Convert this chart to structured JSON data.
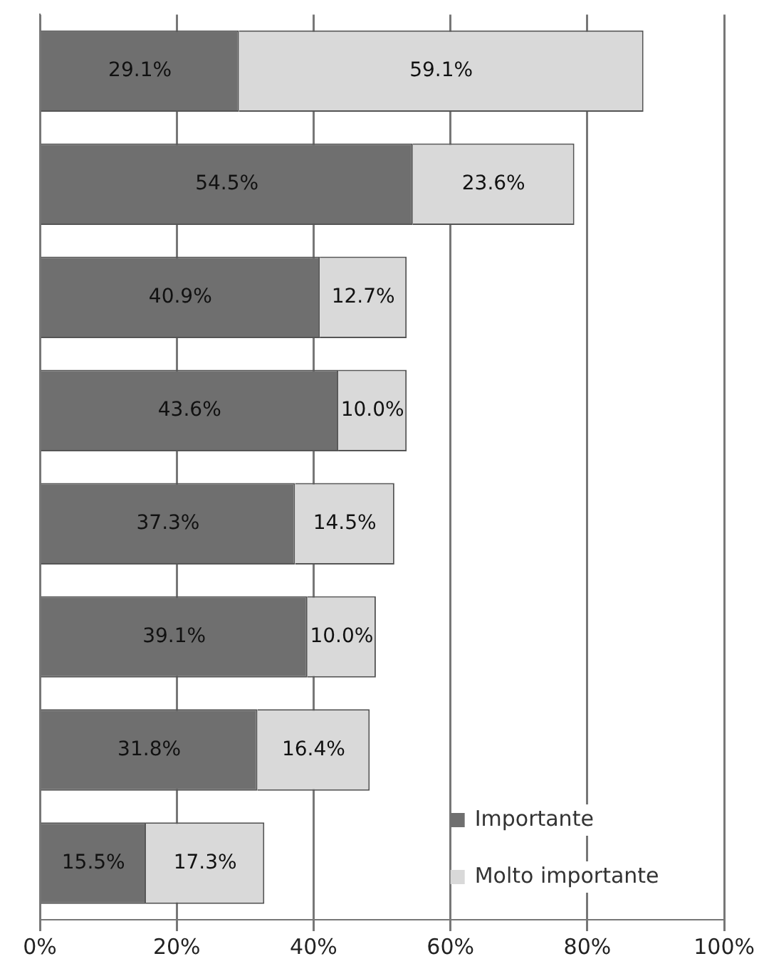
{
  "chart_data": {
    "type": "bar",
    "orientation": "horizontal",
    "stacked": true,
    "categories": [
      null,
      null,
      null,
      null,
      null,
      null,
      null,
      null
    ],
    "series": [
      {
        "name": "Importante",
        "color": "#6f6f6f",
        "values": [
          29.1,
          54.5,
          40.9,
          43.6,
          37.3,
          39.1,
          31.8,
          15.5
        ],
        "value_labels": [
          "29.1%",
          "54.5%",
          "40.9%",
          "43.6%",
          "37.3%",
          "39.1%",
          "31.8%",
          "15.5%"
        ]
      },
      {
        "name": "Molto importante",
        "color": "#d9d9d9",
        "values": [
          59.1,
          23.6,
          12.7,
          10.0,
          14.5,
          10.0,
          16.4,
          17.3
        ],
        "value_labels": [
          "59.1%",
          "23.6%",
          "12.7%",
          "10.0%",
          "14.5%",
          "10.0%",
          "16.4%",
          "17.3%"
        ]
      }
    ],
    "xlim": [
      0,
      100
    ],
    "xticks": [
      {
        "value": 0,
        "label": "0%"
      },
      {
        "value": 20,
        "label": "20%"
      },
      {
        "value": 40,
        "label": "40%"
      },
      {
        "value": 60,
        "label": "60%"
      },
      {
        "value": 80,
        "label": "80%"
      },
      {
        "value": 100,
        "label": "100%"
      }
    ],
    "grid": "x",
    "legend": "bottom right"
  }
}
